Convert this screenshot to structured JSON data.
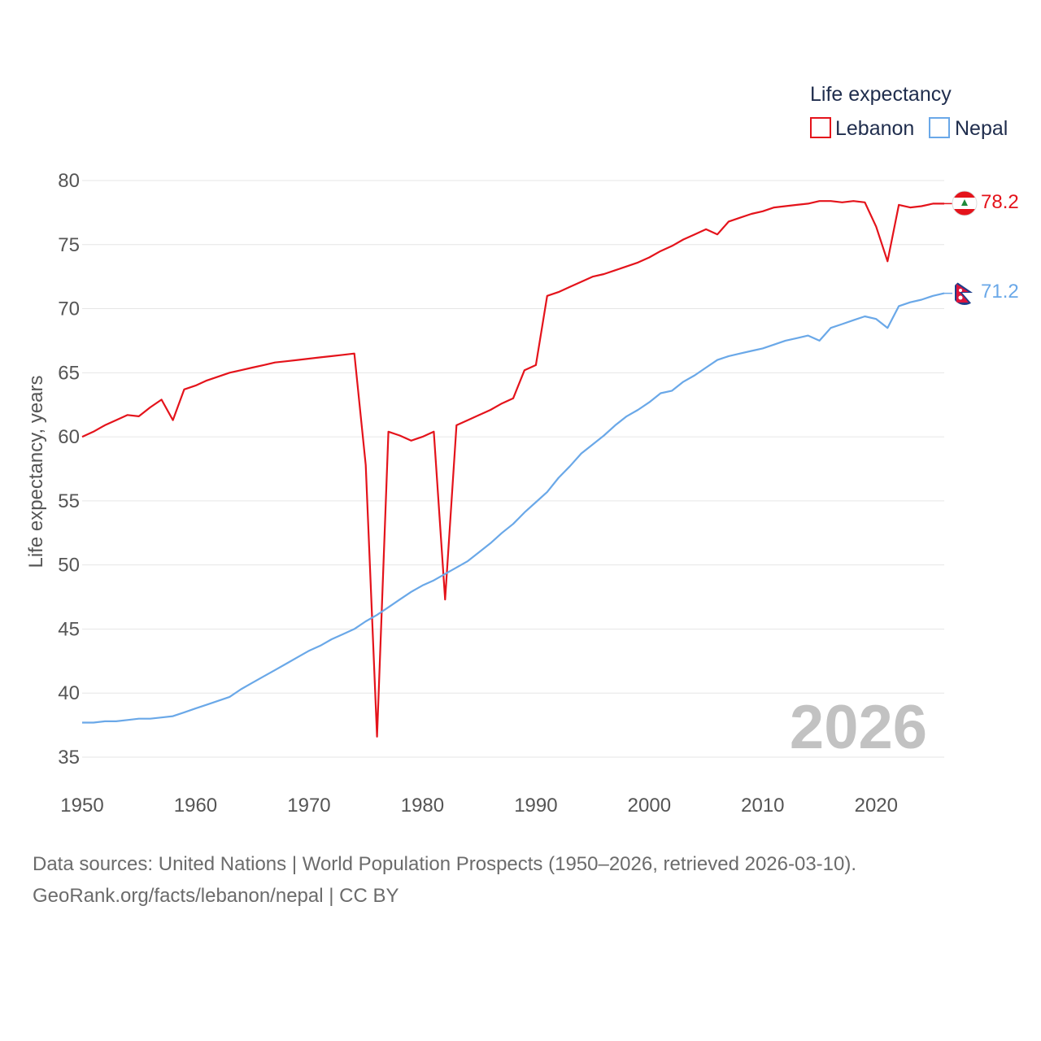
{
  "chart_data": {
    "type": "line",
    "title": "",
    "xlabel": "",
    "ylabel": "Life expectancy, years",
    "xlim": [
      1950,
      2026
    ],
    "ylim": [
      35,
      80
    ],
    "x_ticks": [
      "1950",
      "1960",
      "1970",
      "1980",
      "1990",
      "2000",
      "2010",
      "2020"
    ],
    "y_ticks": [
      "35",
      "40",
      "45",
      "50",
      "55",
      "60",
      "65",
      "70",
      "75",
      "80"
    ],
    "legend_title": "Life expectancy",
    "legend_position": "top-right",
    "year_label": "2026",
    "x": [
      1950,
      1951,
      1952,
      1953,
      1954,
      1955,
      1956,
      1957,
      1958,
      1959,
      1960,
      1961,
      1962,
      1963,
      1964,
      1965,
      1966,
      1967,
      1968,
      1969,
      1970,
      1971,
      1972,
      1973,
      1974,
      1975,
      1976,
      1977,
      1978,
      1979,
      1980,
      1981,
      1982,
      1983,
      1984,
      1985,
      1986,
      1987,
      1988,
      1989,
      1990,
      1991,
      1992,
      1993,
      1994,
      1995,
      1996,
      1997,
      1998,
      1999,
      2000,
      2001,
      2002,
      2003,
      2004,
      2005,
      2006,
      2007,
      2008,
      2009,
      2010,
      2011,
      2012,
      2013,
      2014,
      2015,
      2016,
      2017,
      2018,
      2019,
      2020,
      2021,
      2022,
      2023,
      2024,
      2025,
      2026
    ],
    "series": [
      {
        "name": "Lebanon",
        "color": "#e4131b",
        "end_label": "78.2",
        "flag_icon": "lebanon-flag-icon",
        "values": [
          60.0,
          60.4,
          60.9,
          61.3,
          61.7,
          61.6,
          62.3,
          62.9,
          61.3,
          63.7,
          64.0,
          64.4,
          64.7,
          65.0,
          65.2,
          65.4,
          65.6,
          65.8,
          65.9,
          66.0,
          66.1,
          66.2,
          66.3,
          66.4,
          66.5,
          57.8,
          36.6,
          60.4,
          60.1,
          59.7,
          60.0,
          60.4,
          47.3,
          60.9,
          61.3,
          61.7,
          62.1,
          62.6,
          63.0,
          65.2,
          65.6,
          71.0,
          71.3,
          71.7,
          72.1,
          72.5,
          72.7,
          73.0,
          73.3,
          73.6,
          74.0,
          74.5,
          74.9,
          75.4,
          75.8,
          76.2,
          75.8,
          76.8,
          77.1,
          77.4,
          77.6,
          77.9,
          78.0,
          78.1,
          78.2,
          78.4,
          78.4,
          78.3,
          78.4,
          78.3,
          76.4,
          73.7,
          78.1,
          77.9,
          78.0,
          78.2,
          78.2
        ]
      },
      {
        "name": "Nepal",
        "color": "#6aa8e8",
        "end_label": "71.2",
        "flag_icon": "nepal-flag-icon",
        "values": [
          37.7,
          37.7,
          37.8,
          37.8,
          37.9,
          38.0,
          38.0,
          38.1,
          38.2,
          38.5,
          38.8,
          39.1,
          39.4,
          39.7,
          40.3,
          40.8,
          41.3,
          41.8,
          42.3,
          42.8,
          43.3,
          43.7,
          44.2,
          44.6,
          45.0,
          45.6,
          46.1,
          46.7,
          47.3,
          47.9,
          48.4,
          48.8,
          49.3,
          49.8,
          50.3,
          51.0,
          51.7,
          52.5,
          53.2,
          54.1,
          54.9,
          55.7,
          56.8,
          57.7,
          58.7,
          59.4,
          60.1,
          60.9,
          61.6,
          62.1,
          62.7,
          63.4,
          63.6,
          64.3,
          64.8,
          65.4,
          66.0,
          66.3,
          66.5,
          66.7,
          66.9,
          67.2,
          67.5,
          67.7,
          67.9,
          67.5,
          68.5,
          68.8,
          69.1,
          69.4,
          69.2,
          68.5,
          70.2,
          70.5,
          70.7,
          71.0,
          71.2
        ]
      }
    ]
  },
  "footer": {
    "line1": "Data sources: United Nations | World Population Prospects (1950–2026, retrieved 2026-03-10).",
    "line2": "GeoRank.org/facts/lebanon/nepal | CC BY"
  }
}
